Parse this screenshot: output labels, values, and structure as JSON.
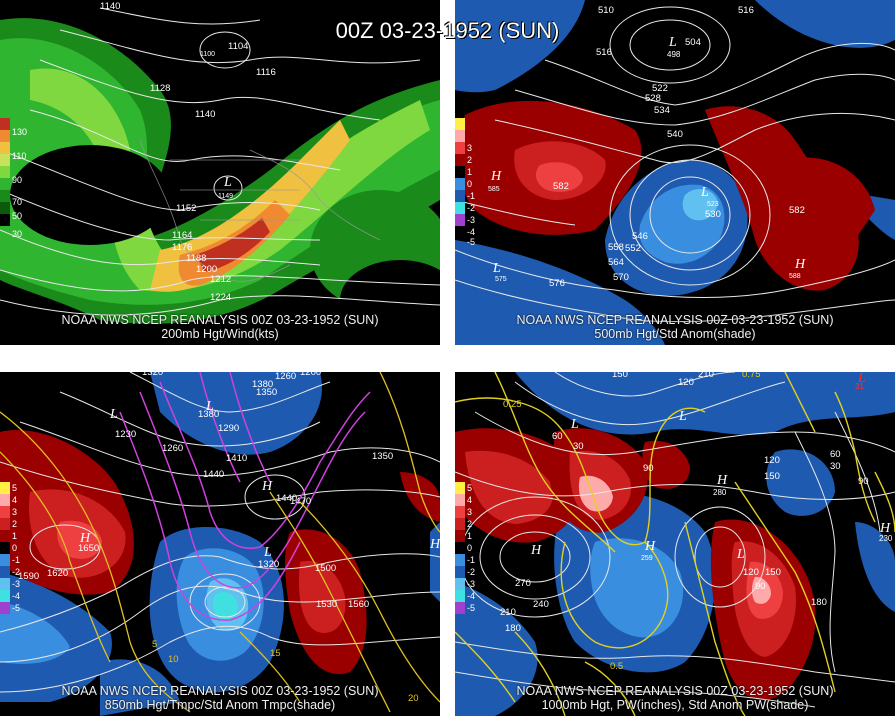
{
  "title": "00Z 03-23-1952 (SUN)",
  "panels": {
    "top_left": {
      "line1": "NOAA NWS NCEP REANALYSIS 00Z 03-23-1952 (SUN)",
      "line2": "200mb Hgt/Wind(kts)",
      "legend": [
        "130",
        "110",
        "90",
        "70",
        "50",
        "30"
      ],
      "contour_labels": [
        "1140",
        "1104",
        "1116",
        "1128",
        "1140",
        "1152",
        "1164",
        "1176",
        "1188",
        "1200",
        "1212",
        "1224",
        "1100",
        "1149"
      ]
    },
    "top_right": {
      "line1": "NOAA NWS NCEP REANALYSIS 00Z 03-23-1952 (SUN)",
      "line2": "500mb Hgt/Std Anom(shade)",
      "legend": [
        "3",
        "2",
        "1",
        "0",
        "-1",
        "-2",
        "-3",
        "-4",
        "-5"
      ],
      "contour_labels": [
        "510",
        "516",
        "522",
        "528",
        "534",
        "540",
        "504",
        "498",
        "516",
        "582",
        "585",
        "546",
        "552",
        "558",
        "564",
        "570",
        "576",
        "523",
        "530",
        "582",
        "588",
        "575"
      ]
    },
    "bottom_left": {
      "line1": "NOAA NWS NCEP REANALYSIS 00Z 03-23-1952 (SUN)",
      "line2": "850mb Hgt/Tmpc/Std Anom Tmpc(shade)",
      "legend": [
        "5",
        "4",
        "3",
        "2",
        "1",
        "0",
        "-1",
        "-2",
        "-3",
        "-4",
        "-5"
      ],
      "contour_labels": [
        "1320",
        "1380",
        "1350",
        "1290",
        "1230",
        "1260",
        "1410",
        "1440",
        "1350",
        "1470",
        "1500",
        "1530",
        "1560",
        "1590",
        "1620",
        "1650",
        "1320",
        "1380",
        "1440",
        "1200",
        "1260",
        "15",
        "10",
        "5",
        "20"
      ]
    },
    "bottom_right": {
      "line1": "NOAA NWS NCEP REANALYSIS 00Z 03-23-1952 (SUN)",
      "line2": "1000mb Hgt, PW(inches), Std Anom PW(shade)",
      "legend": [
        "5",
        "4",
        "3",
        "2",
        "1",
        "0",
        "-1",
        "-2",
        "-3",
        "-4",
        "-5"
      ],
      "contour_labels": [
        "150",
        "210",
        "120",
        "30",
        "60",
        "90",
        "0.25",
        "0.5",
        "0.75",
        "270",
        "240",
        "210",
        "180",
        "120",
        "150",
        "180",
        "90",
        "60",
        "30",
        "90",
        "120",
        "150",
        "259",
        "31",
        "230",
        "280"
      ]
    }
  },
  "colors": {
    "wind": [
      "#1a8a1a",
      "#2fb52f",
      "#7fd83f",
      "#c8e05a",
      "#f0c040",
      "#f08a30",
      "#c03020"
    ],
    "anom_pos": [
      "#5a0000",
      "#9a0000",
      "#cc2020",
      "#ee4040",
      "#ff7070",
      "#ffaaaa"
    ],
    "anom_neg": [
      "#0a2a6a",
      "#1e5bb0",
      "#3a8ee0",
      "#60c0f0",
      "#40e0e0",
      "#a040d0"
    ]
  }
}
